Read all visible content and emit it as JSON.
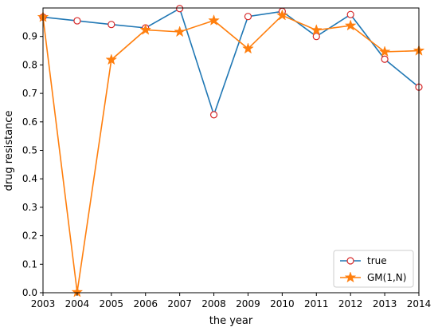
{
  "chart_data": {
    "type": "line",
    "title": "",
    "xlabel": "the year",
    "ylabel": "drug resistance",
    "xlim": [
      2003,
      2014
    ],
    "ylim": [
      0.0,
      1.0
    ],
    "x": [
      2003,
      2004,
      2005,
      2006,
      2007,
      2008,
      2009,
      2010,
      2011,
      2012,
      2013,
      2014
    ],
    "xticks": [
      "2003",
      "2004",
      "2005",
      "2006",
      "2007",
      "2008",
      "2009",
      "2010",
      "2011",
      "2012",
      "2013",
      "2014"
    ],
    "yticks": [
      0.0,
      0.1,
      0.2,
      0.3,
      0.4,
      0.5,
      0.6,
      0.7,
      0.8,
      0.9
    ],
    "yticklabels": [
      "0.0",
      "0.1",
      "0.2",
      "0.3",
      "0.4",
      "0.5",
      "0.6",
      "0.7",
      "0.8",
      "0.9"
    ],
    "grid": false,
    "legend_position": "bottom-right",
    "series": [
      {
        "name": "true",
        "color": "#1f77b4",
        "marker": "circle",
        "marker_edge": "#d62728",
        "values": [
          0.968,
          0.955,
          0.942,
          0.93,
          0.998,
          0.625,
          0.97,
          0.988,
          0.9,
          0.977,
          0.82,
          0.722
        ]
      },
      {
        "name": "GM(1,N)",
        "color": "#ff7f0e",
        "marker": "star",
        "values": [
          0.968,
          0.002,
          0.818,
          0.923,
          0.916,
          0.956,
          0.857,
          0.974,
          0.922,
          0.938,
          0.846,
          0.85
        ]
      }
    ]
  }
}
